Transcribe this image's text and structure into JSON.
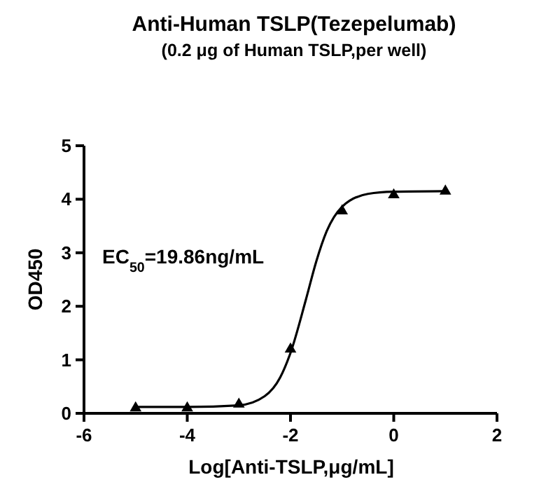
{
  "chart_data": {
    "type": "scatter",
    "title": "Anti-Human TSLP(Tezepelumab)",
    "subtitle": "(0.2 μg of Human TSLP,per well)",
    "xlabel": "Log[Anti-TSLP,μg/mL]",
    "ylabel": "OD450",
    "annotations": [
      "EC$_{50}$=19.86ng/mL"
    ],
    "series": [
      {
        "type": "scatter",
        "color": "#000000",
        "marker": "triangle",
        "x": [
          -5,
          -4,
          -3,
          -2,
          -1,
          0,
          1
        ],
        "values": [
          0.1,
          0.1,
          0.17,
          1.2,
          3.78,
          4.08,
          4.15
        ]
      },
      {
        "type": "line",
        "color": "#000000",
        "marker": "none",
        "x": [
          -5,
          -4,
          -3,
          -2.5,
          -2.2,
          -2,
          -1.7,
          -1.5,
          -1.3,
          -1,
          -0.5,
          0,
          1
        ],
        "values": [
          0.12,
          0.12,
          0.15,
          0.32,
          0.67,
          1.13,
          2.13,
          2.84,
          3.4,
          3.86,
          4.1,
          4.14,
          4.15
        ]
      }
    ],
    "xlim": [
      -6,
      2
    ],
    "xticks": [
      -6,
      -4,
      -2,
      0,
      2
    ],
    "ylim": [
      0,
      5
    ],
    "yticks": [
      0,
      1,
      2,
      3,
      4,
      5
    ],
    "grid": false
  }
}
